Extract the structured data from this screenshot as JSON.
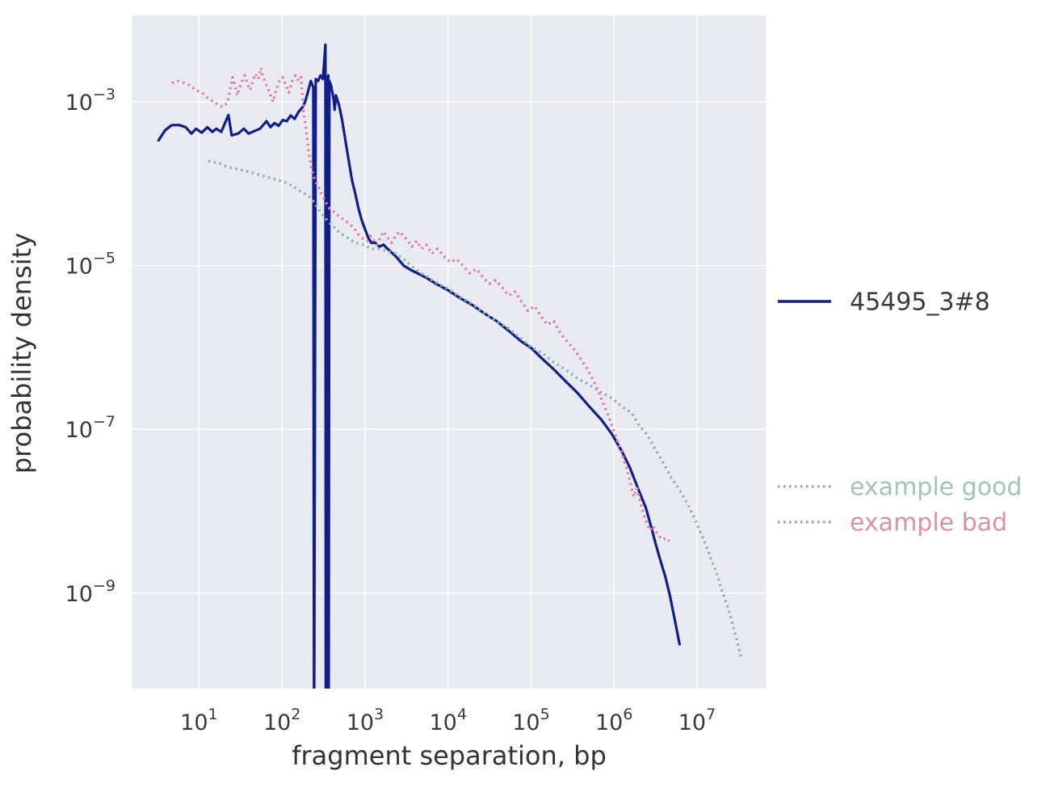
{
  "figure": {
    "background_color": "#ffffff",
    "plot_background_color": "#eaeaf2",
    "grid_color": "#ffffff",
    "text_color": "#333333"
  },
  "chart_data": {
    "type": "line",
    "title": "",
    "xlabel": "fragment separation, bp",
    "ylabel": "probability density",
    "x_scale": "log",
    "y_scale": "log",
    "xlim": [
      1.56,
      68000000
    ],
    "ylim": [
      6.8e-11,
      0.0114
    ],
    "x_tick_exponents": [
      1,
      2,
      3,
      4,
      5,
      6,
      7
    ],
    "y_tick_exponents": [
      -3,
      -5,
      -7,
      -9
    ],
    "grid": true,
    "legend_position": "right-outside",
    "series": [
      {
        "name": "45495_3#8",
        "color": "#101e8c",
        "label_color": "#3a3a3a",
        "style": "solid",
        "points": [
          [
            3.2,
            0.00033
          ],
          [
            3.9,
            0.00045
          ],
          [
            4.7,
            0.00052
          ],
          [
            5.8,
            0.00052
          ],
          [
            6.9,
            0.00049
          ],
          [
            8.1,
            0.00041
          ],
          [
            9.2,
            0.00047
          ],
          [
            10.8,
            0.00042
          ],
          [
            12.6,
            0.00049
          ],
          [
            14.5,
            0.00043
          ],
          [
            16.2,
            0.00047
          ],
          [
            18.5,
            0.00043
          ],
          [
            22.6,
            0.00069
          ],
          [
            24.8,
            0.00039
          ],
          [
            29.6,
            0.00041
          ],
          [
            34.7,
            0.00047
          ],
          [
            39.6,
            0.00041
          ],
          [
            46.3,
            0.00044
          ],
          [
            54.2,
            0.00047
          ],
          [
            64.9,
            0.00058
          ],
          [
            72.6,
            0.00049
          ],
          [
            81.3,
            0.00055
          ],
          [
            90.8,
            0.00051
          ],
          [
            102,
            0.0006
          ],
          [
            114,
            0.00058
          ],
          [
            127,
            0.00068
          ],
          [
            142,
            0.00062
          ],
          [
            159,
            0.00076
          ],
          [
            178,
            0.00087
          ],
          [
            190,
            0.001
          ],
          [
            208,
            0.0014
          ],
          [
            222,
            0.0018
          ],
          [
            238,
            0.0015
          ],
          [
            243,
            1e-11
          ],
          [
            255,
            0.0019
          ],
          [
            272,
            0.0018
          ],
          [
            291,
            0.0021
          ],
          [
            311,
            0.0019
          ],
          [
            333,
            0.005
          ],
          [
            337,
            1e-11
          ],
          [
            343,
            0.002
          ],
          [
            349,
            1e-11
          ],
          [
            355,
            1e-11
          ],
          [
            361,
            0.0021
          ],
          [
            365,
            1e-11
          ],
          [
            372,
            0.0018
          ],
          [
            389,
            0.0016
          ],
          [
            417,
            0.0011
          ],
          [
            430,
            0.0008
          ],
          [
            446,
            0.0012
          ],
          [
            487,
            0.00091
          ],
          [
            533,
            0.00058
          ],
          [
            582,
            0.00033
          ],
          [
            637,
            0.00019
          ],
          [
            697,
            0.00011
          ],
          [
            762,
            7.6e-05
          ],
          [
            834,
            5e-05
          ],
          [
            912,
            3.6e-05
          ],
          [
            998,
            2.8e-05
          ],
          [
            1090,
            2.2e-05
          ],
          [
            1190,
            1.9e-05
          ],
          [
            1330,
            1.9e-05
          ],
          [
            1490,
            1.7e-05
          ],
          [
            1670,
            1.8e-05
          ],
          [
            1870,
            1.6e-05
          ],
          [
            2340,
            1.3e-05
          ],
          [
            2920,
            1e-05
          ],
          [
            3660,
            8.7e-06
          ],
          [
            4570,
            7.8e-06
          ],
          [
            5730,
            6.9e-06
          ],
          [
            7160,
            6e-06
          ],
          [
            10000,
            5e-06
          ],
          [
            14000,
            4e-06
          ],
          [
            19600,
            3.3e-06
          ],
          [
            27500,
            2.6e-06
          ],
          [
            38500,
            2.1e-06
          ],
          [
            53700,
            1.6e-06
          ],
          [
            75200,
            1.2e-06
          ],
          [
            101000,
            9.8e-07
          ],
          [
            138000,
            7.2e-07
          ],
          [
            188000,
            5.4e-07
          ],
          [
            258000,
            3.9e-07
          ],
          [
            361000,
            2.8e-07
          ],
          [
            504000,
            1.9e-07
          ],
          [
            706000,
            1.3e-07
          ],
          [
            946000,
            8.7e-08
          ],
          [
            1240000,
            5.4e-08
          ],
          [
            1550000,
            3.4e-08
          ],
          [
            1940000,
            1.9e-08
          ],
          [
            2420000,
            1.1e-08
          ],
          [
            2830000,
            6.2e-09
          ],
          [
            3170000,
            4e-09
          ],
          [
            3620000,
            2.5e-09
          ],
          [
            4140000,
            1.6e-09
          ],
          [
            4740000,
            9.1e-10
          ],
          [
            5420000,
            4.6e-10
          ],
          [
            6200000,
            2.3e-10
          ]
        ]
      },
      {
        "name": "example good",
        "color": "#8ab5a7",
        "label_color": "#a0c5b8",
        "style": "dotted",
        "points": [
          [
            12.9,
            0.00019
          ],
          [
            16.9,
            0.00018
          ],
          [
            22.1,
            0.00016
          ],
          [
            29.6,
            0.00015
          ],
          [
            39.6,
            0.00014
          ],
          [
            51.9,
            0.00013
          ],
          [
            67.9,
            0.00012
          ],
          [
            90.8,
            0.00011
          ],
          [
            121,
            0.0001
          ],
          [
            159,
            8.3e-05
          ],
          [
            208,
            7.1e-05
          ],
          [
            249,
            5.8e-05
          ],
          [
            298,
            4.3e-05
          ],
          [
            356,
            3.5e-05
          ],
          [
            417,
            3e-05
          ],
          [
            498,
            2.5e-05
          ],
          [
            610,
            2.2e-05
          ],
          [
            762,
            1.9e-05
          ],
          [
            955,
            1.8e-05
          ],
          [
            1190,
            1.6e-05
          ],
          [
            1490,
            1.6e-05
          ],
          [
            2340,
            1.4e-05
          ],
          [
            2920,
            1.2e-05
          ],
          [
            3660,
            9.8e-06
          ],
          [
            4570,
            8.3e-06
          ],
          [
            5730,
            7.2e-06
          ],
          [
            7160,
            6.2e-06
          ],
          [
            10000,
            5.2e-06
          ],
          [
            14000,
            4.1e-06
          ],
          [
            19600,
            3.4e-06
          ],
          [
            27500,
            2.6e-06
          ],
          [
            38500,
            2.1e-06
          ],
          [
            53700,
            1.7e-06
          ],
          [
            75200,
            1.3e-06
          ],
          [
            101000,
            1e-06
          ],
          [
            138000,
            8.5e-07
          ],
          [
            188000,
            6.6e-07
          ],
          [
            258000,
            5.4e-07
          ],
          [
            361000,
            4.2e-07
          ],
          [
            504000,
            3.5e-07
          ],
          [
            706000,
            2.8e-07
          ],
          [
            946000,
            2.4e-07
          ],
          [
            1240000,
            1.9e-07
          ],
          [
            1620000,
            1.6e-07
          ],
          [
            2020000,
            1.1e-07
          ],
          [
            2530000,
            8.5e-08
          ],
          [
            3170000,
            5.6e-08
          ],
          [
            3960000,
            3.8e-08
          ],
          [
            4960000,
            2.5e-08
          ],
          [
            6200000,
            1.8e-08
          ],
          [
            7760000,
            1.2e-08
          ],
          [
            9270000,
            8.3e-09
          ],
          [
            11100000,
            5.4e-09
          ],
          [
            13000000,
            3.7e-09
          ],
          [
            15200000,
            2.4e-09
          ],
          [
            17400000,
            1.7e-09
          ],
          [
            20300000,
            1e-09
          ],
          [
            23800000,
            6.5e-10
          ],
          [
            27200000,
            3.9e-10
          ],
          [
            30400000,
            2.6e-10
          ],
          [
            34000000,
            1.6e-10
          ]
        ]
      },
      {
        "name": "example bad",
        "color": "#d9839f",
        "label_color": "#de8fa8",
        "style": "dotted",
        "points": [
          [
            4.7,
            0.0017
          ],
          [
            5.5,
            0.0018
          ],
          [
            6.6,
            0.0017
          ],
          [
            7.7,
            0.0016
          ],
          [
            9.0,
            0.0014
          ],
          [
            10.8,
            0.0013
          ],
          [
            12.9,
            0.0011
          ],
          [
            15.1,
            0.001
          ],
          [
            17.7,
            0.00089
          ],
          [
            19.8,
            0.00087
          ],
          [
            22.1,
            0.001
          ],
          [
            23.7,
            0.0014
          ],
          [
            25.3,
            0.002
          ],
          [
            27.1,
            0.0016
          ],
          [
            29.0,
            0.0012
          ],
          [
            31.0,
            0.0015
          ],
          [
            33.1,
            0.0018
          ],
          [
            35.5,
            0.0021
          ],
          [
            37.9,
            0.0017
          ],
          [
            41.5,
            0.0014
          ],
          [
            44.4,
            0.0018
          ],
          [
            47.4,
            0.0022
          ],
          [
            51.9,
            0.0019
          ],
          [
            55.5,
            0.0026
          ],
          [
            59.3,
            0.002
          ],
          [
            64.9,
            0.0016
          ],
          [
            71.0,
            0.0013
          ],
          [
            77.6,
            0.001
          ],
          [
            84.9,
            0.0014
          ],
          [
            92.9,
            0.0018
          ],
          [
            102,
            0.002
          ],
          [
            111,
            0.0016
          ],
          [
            121,
            0.0013
          ],
          [
            133,
            0.0018
          ],
          [
            145,
            0.0021
          ],
          [
            159,
            0.0018
          ],
          [
            170,
            0.002
          ],
          [
            182,
            0.00072
          ],
          [
            195,
            0.00047
          ],
          [
            208,
            0.00026
          ],
          [
            227,
            0.00015
          ],
          [
            249,
            0.00011
          ],
          [
            272,
            9.5e-05
          ],
          [
            298,
            7.6e-05
          ],
          [
            333,
            6e-05
          ],
          [
            372,
            5e-05
          ],
          [
            426,
            4.5e-05
          ],
          [
            487,
            4e-05
          ],
          [
            557,
            3.6e-05
          ],
          [
            637,
            3.3e-05
          ],
          [
            729,
            2.9e-05
          ],
          [
            834,
            2.4e-05
          ],
          [
            955,
            2.1e-05
          ],
          [
            1070,
            2e-05
          ],
          [
            1170,
            2.3e-05
          ],
          [
            1280,
            2e-05
          ],
          [
            1400,
            1.8e-05
          ],
          [
            1530,
            2.2e-05
          ],
          [
            1670,
            2.6e-05
          ],
          [
            1870,
            2.2e-05
          ],
          [
            2090,
            1.9e-05
          ],
          [
            2340,
            2.3e-05
          ],
          [
            2610,
            2.6e-05
          ],
          [
            2920,
            2.3e-05
          ],
          [
            3270,
            2e-05
          ],
          [
            3660,
            1.7e-05
          ],
          [
            4190,
            2e-05
          ],
          [
            4790,
            1.6e-05
          ],
          [
            5470,
            1.8e-05
          ],
          [
            6400,
            1.4e-05
          ],
          [
            7480,
            1.6e-05
          ],
          [
            8950,
            1.3e-05
          ],
          [
            10700,
            1.1e-05
          ],
          [
            12800,
            1.2e-05
          ],
          [
            15300,
            9.8e-06
          ],
          [
            18300,
            8.1e-06
          ],
          [
            21900,
            9.1e-06
          ],
          [
            26200,
            7.2e-06
          ],
          [
            31400,
            6e-06
          ],
          [
            37600,
            6.6e-06
          ],
          [
            44900,
            5.4e-06
          ],
          [
            53700,
            4.3e-06
          ],
          [
            64300,
            4.8e-06
          ],
          [
            76900,
            3.6e-06
          ],
          [
            92000,
            2.8e-06
          ],
          [
            110000,
            3.2e-06
          ],
          [
            132000,
            2.4e-06
          ],
          [
            157000,
            1.9e-06
          ],
          [
            188000,
            2.1e-06
          ],
          [
            225000,
            1.5e-06
          ],
          [
            269000,
            1.2e-06
          ],
          [
            322000,
            9.8e-07
          ],
          [
            386000,
            7.6e-07
          ],
          [
            461000,
            5.8e-07
          ],
          [
            552000,
            4.1e-07
          ],
          [
            631000,
            3.1e-07
          ],
          [
            723000,
            2.2e-07
          ],
          [
            826000,
            1.6e-07
          ],
          [
            946000,
            1.1e-07
          ],
          [
            1080000,
            7.6e-08
          ],
          [
            1240000,
            5.1e-08
          ],
          [
            1410000,
            3.4e-08
          ],
          [
            1580000,
            2.2e-08
          ],
          [
            1730000,
            1.5e-08
          ],
          [
            1890000,
            1.9e-08
          ],
          [
            2070000,
            1.3e-08
          ],
          [
            2270000,
            9.1e-09
          ],
          [
            2480000,
            7.2e-09
          ],
          [
            2710000,
            5.8e-09
          ],
          [
            2960000,
            6.6e-09
          ],
          [
            3240000,
            5.5e-09
          ],
          [
            3540000,
            4.9e-09
          ],
          [
            3870000,
            4.5e-09
          ],
          [
            4230000,
            4.7e-09
          ],
          [
            4630000,
            4.3e-09
          ]
        ]
      }
    ]
  }
}
